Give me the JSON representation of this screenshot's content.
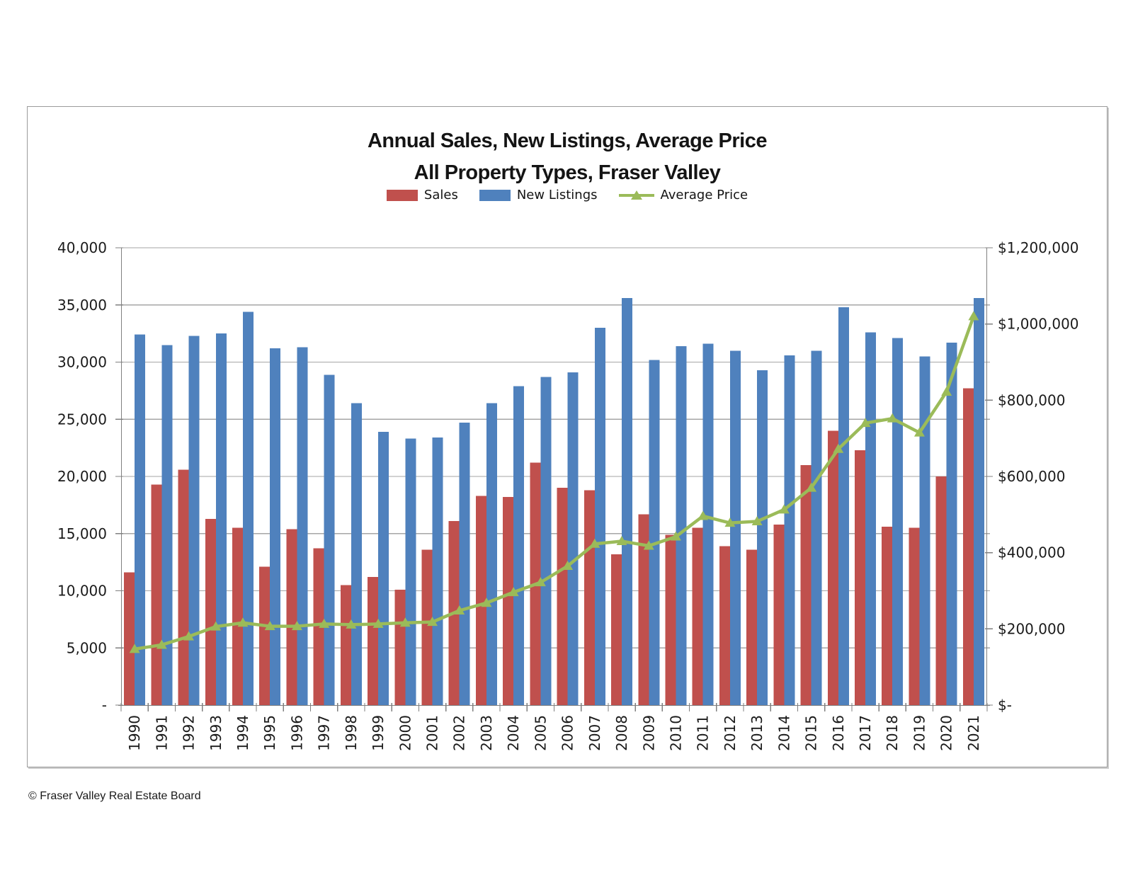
{
  "chart": {
    "title_line1": "Annual Sales, New Listings, Average Price",
    "title_line2": "All Property Types, Fraser Valley"
  },
  "chart_data": {
    "type": "bar+line",
    "title": "Annual Sales, New Listings, Average Price — All Property Types, Fraser Valley",
    "categories": [
      "1990",
      "1991",
      "1992",
      "1993",
      "1994",
      "1995",
      "1996",
      "1997",
      "1998",
      "1999",
      "2000",
      "2001",
      "2002",
      "2003",
      "2004",
      "2005",
      "2006",
      "2007",
      "2008",
      "2009",
      "2010",
      "2011",
      "2012",
      "2013",
      "2014",
      "2015",
      "2016",
      "2017",
      "2018",
      "2019",
      "2020",
      "2021"
    ],
    "series": [
      {
        "name": "Sales",
        "type": "bar",
        "axis": "left",
        "color": "#C0504D",
        "values": [
          11600,
          19300,
          20600,
          16300,
          15500,
          12100,
          15400,
          13700,
          10500,
          11200,
          10100,
          13600,
          16100,
          18300,
          18200,
          21200,
          19000,
          18800,
          13200,
          16700,
          14900,
          15500,
          13900,
          13600,
          15800,
          21000,
          24000,
          22300,
          15600,
          15500,
          20000,
          27700
        ]
      },
      {
        "name": "New Listings",
        "type": "bar",
        "axis": "left",
        "color": "#4F81BD",
        "values": [
          32400,
          31500,
          32300,
          32500,
          34400,
          31200,
          31300,
          28900,
          26400,
          23900,
          23300,
          23400,
          24700,
          26400,
          27900,
          28700,
          29100,
          33000,
          35600,
          30200,
          31400,
          31600,
          31000,
          29300,
          30600,
          31000,
          34800,
          32600,
          32100,
          30500,
          31700,
          35600
        ]
      },
      {
        "name": "Average Price",
        "type": "line",
        "axis": "right",
        "color": "#9BBB59",
        "values": [
          147000,
          158000,
          180000,
          206000,
          216000,
          207000,
          207000,
          213000,
          211000,
          213000,
          216000,
          218000,
          248000,
          268000,
          296000,
          322000,
          365000,
          423000,
          430000,
          418000,
          442000,
          496000,
          478000,
          482000,
          513000,
          570000,
          672000,
          740000,
          752000,
          715000,
          822000,
          1020000
        ]
      }
    ],
    "left_axis": {
      "min": 0,
      "max": 40000,
      "step": 5000,
      "ticks": [
        {
          "v": 40000,
          "label": "40,000"
        },
        {
          "v": 35000,
          "label": "35,000"
        },
        {
          "v": 30000,
          "label": "30,000"
        },
        {
          "v": 25000,
          "label": "25,000"
        },
        {
          "v": 20000,
          "label": "20,000"
        },
        {
          "v": 15000,
          "label": "15,000"
        },
        {
          "v": 10000,
          "label": "10,000"
        },
        {
          "v": 5000,
          "label": "5,000"
        },
        {
          "v": 0,
          "label": "-"
        }
      ]
    },
    "right_axis": {
      "min": 0,
      "max": 1200000,
      "step": 200000,
      "ticks": [
        {
          "v": 1200000,
          "label": "$1,200,000"
        },
        {
          "v": 1000000,
          "label": "$1,000,000"
        },
        {
          "v": 800000,
          "label": "$800,000"
        },
        {
          "v": 600000,
          "label": "$600,000"
        },
        {
          "v": 400000,
          "label": "$400,000"
        },
        {
          "v": 200000,
          "label": "$200,000"
        },
        {
          "v": 0,
          "label": "$-"
        }
      ]
    },
    "grid": true,
    "legend_position": "top",
    "colors": {
      "gridline": "#A6A6A6",
      "axis_line": "#808080",
      "text": "#1a1a1a"
    }
  },
  "footer": {
    "copyright": "© Fraser Valley Real Estate Board"
  }
}
